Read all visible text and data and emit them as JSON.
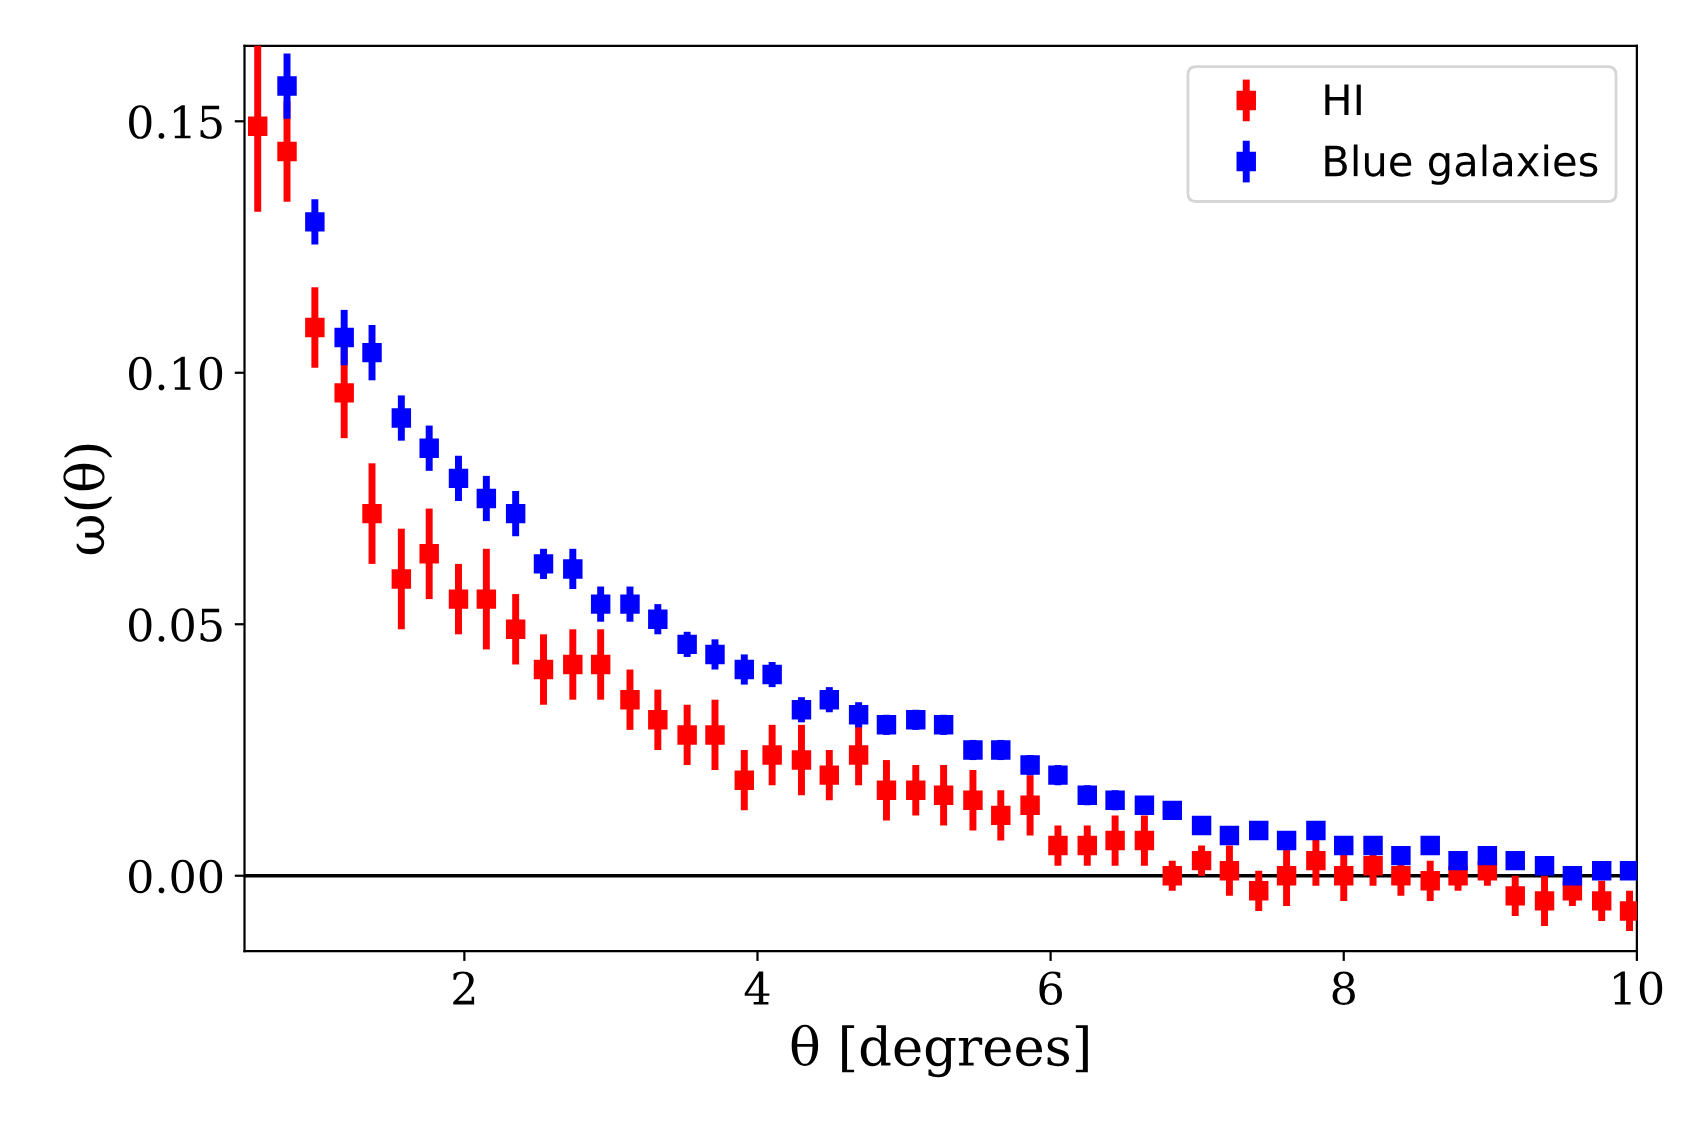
{
  "chart_data": {
    "type": "scatter",
    "xlabel": "θ [degrees]",
    "ylabel": "ω(θ)",
    "x": [
      0.59,
      0.79,
      0.98,
      1.18,
      1.37,
      1.57,
      1.76,
      1.96,
      2.15,
      2.35,
      2.54,
      2.74,
      2.93,
      3.13,
      3.32,
      3.52,
      3.71,
      3.91,
      4.1,
      4.3,
      4.49,
      4.69,
      4.88,
      5.08,
      5.27,
      5.47,
      5.66,
      5.86,
      6.05,
      6.25,
      6.44,
      6.64,
      6.83,
      7.03,
      7.22,
      7.42,
      7.61,
      7.81,
      8.0,
      8.2,
      8.39,
      8.59,
      8.78,
      8.98,
      9.17,
      9.37,
      9.56,
      9.76,
      9.95
    ],
    "series": [
      {
        "name": "HI",
        "color": "#ff0000",
        "values": [
          0.149,
          0.144,
          0.109,
          0.096,
          0.072,
          0.059,
          0.064,
          0.055,
          0.055,
          0.049,
          0.041,
          0.042,
          0.042,
          0.035,
          0.031,
          0.028,
          0.028,
          0.019,
          0.024,
          0.023,
          0.02,
          0.024,
          0.017,
          0.017,
          0.016,
          0.015,
          0.012,
          0.014,
          0.006,
          0.006,
          0.007,
          0.007,
          0.0,
          0.003,
          0.001,
          -0.003,
          0.0,
          0.003,
          0.0,
          0.002,
          0.0,
          -0.001,
          0.0,
          0.001,
          -0.004,
          -0.005,
          -0.003,
          -0.005,
          -0.007
        ],
        "errors": [
          0.017,
          0.01,
          0.008,
          0.009,
          0.01,
          0.01,
          0.009,
          0.007,
          0.01,
          0.007,
          0.007,
          0.007,
          0.007,
          0.006,
          0.006,
          0.006,
          0.007,
          0.006,
          0.006,
          0.007,
          0.005,
          0.006,
          0.006,
          0.005,
          0.006,
          0.006,
          0.005,
          0.006,
          0.004,
          0.004,
          0.005,
          0.005,
          0.003,
          0.003,
          0.005,
          0.004,
          0.006,
          0.005,
          0.005,
          0.004,
          0.004,
          0.004,
          0.003,
          0.003,
          0.004,
          0.005,
          0.003,
          0.004,
          0.004
        ]
      },
      {
        "name": "Blue galaxies",
        "color": "#0000ff",
        "values": [
          null,
          0.157,
          0.13,
          0.107,
          0.104,
          0.091,
          0.085,
          0.079,
          0.075,
          0.072,
          0.062,
          0.061,
          0.054,
          0.054,
          0.051,
          0.046,
          0.044,
          0.041,
          0.04,
          0.033,
          0.035,
          0.032,
          0.03,
          0.031,
          0.03,
          0.025,
          0.025,
          0.022,
          0.02,
          0.016,
          0.015,
          0.014,
          0.013,
          0.01,
          0.008,
          0.009,
          0.007,
          0.009,
          0.006,
          0.006,
          0.004,
          0.006,
          0.003,
          0.004,
          0.003,
          0.002,
          0.0,
          0.001,
          0.001
        ],
        "errors": [
          null,
          0.0065,
          0.0045,
          0.0055,
          0.0055,
          0.0045,
          0.0045,
          0.0045,
          0.0045,
          0.0045,
          0.003,
          0.004,
          0.0035,
          0.0035,
          0.003,
          0.0025,
          0.003,
          0.003,
          0.0025,
          0.0025,
          0.0025,
          0.0025,
          0.002,
          0.002,
          0.002,
          0.002,
          0.002,
          0.002,
          0.002,
          0.002,
          0.002,
          0.0015,
          0.0015,
          0.0015,
          0.0015,
          0.0015,
          0.0015,
          0.0015,
          0.0015,
          0.0015,
          0.0015,
          0.0015,
          0.0015,
          0.0015,
          0.0015,
          0.0015,
          0.0015,
          0.0015,
          0.0015
        ]
      }
    ],
    "xlim": [
      0.5,
      10
    ],
    "ylim": [
      -0.015,
      0.165
    ],
    "xticks": [
      2,
      4,
      6,
      8,
      10
    ],
    "yticks": [
      {
        "value": 0,
        "label": "0.00"
      },
      {
        "value": 0.05,
        "label": "0.05"
      },
      {
        "value": 0.1,
        "label": "0.10"
      },
      {
        "value": 0.15,
        "label": "0.15"
      }
    ],
    "ref_lines": [
      {
        "axis": "y",
        "value": 0,
        "color": "#000000"
      }
    ],
    "marker": "square",
    "legend": "top right",
    "grid": false
  }
}
